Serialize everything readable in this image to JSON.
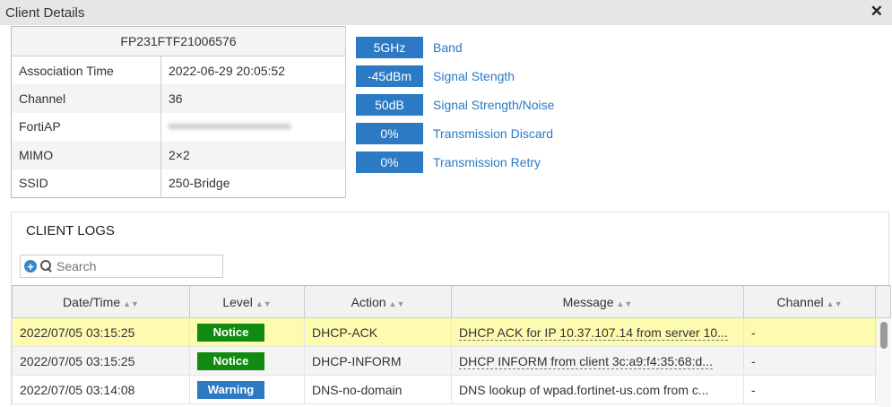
{
  "window": {
    "title": "Client Details",
    "close_icon": "close-icon"
  },
  "info": {
    "header": "FP231FTF21006576",
    "rows": [
      {
        "label": "Association Time",
        "value": "2022-06-29 20:05:52"
      },
      {
        "label": "Channel",
        "value": "36"
      },
      {
        "label": "FortiAP",
        "value": null,
        "blurred": true
      },
      {
        "label": "MIMO",
        "value": "2×2"
      },
      {
        "label": "SSID",
        "value": "250-Bridge"
      }
    ]
  },
  "stats": [
    {
      "value": "5GHz",
      "label": "Band"
    },
    {
      "value": "-45dBm",
      "label": "Signal Stength"
    },
    {
      "value": "50dB",
      "label": "Signal Strength/Noise"
    },
    {
      "value": "0%",
      "label": "Transmission Discard"
    },
    {
      "value": "0%",
      "label": "Transmission Retry"
    }
  ],
  "logs": {
    "title": "CLIENT LOGS",
    "search_placeholder": "Search",
    "columns": [
      "Date/Time",
      "Level",
      "Action",
      "Message",
      "Channel"
    ],
    "rows": [
      {
        "time": "2022/07/05 03:15:25",
        "level": "Notice",
        "level_color": "#108a10",
        "action": "DHCP-ACK",
        "message": "DHCP ACK for IP 10.37.107.14 from server 10...",
        "channel": "-",
        "selected": true
      },
      {
        "time": "2022/07/05 03:15:25",
        "level": "Notice",
        "level_color": "#108a10",
        "action": "DHCP-INFORM",
        "message": "DHCP INFORM from client 3c:a9:f4:35:68:d...",
        "channel": "-"
      },
      {
        "time": "2022/07/05 03:14:08",
        "level": "Warning",
        "level_color": "#2b7ac3",
        "action": "DNS-no-domain",
        "message": "DNS lookup of wpad.fortinet-us.com from c...",
        "channel": "-"
      }
    ]
  },
  "colors": {
    "accent": "#2b7ac3",
    "selected_row": "#fdfbb0",
    "notice": "#108a10"
  }
}
